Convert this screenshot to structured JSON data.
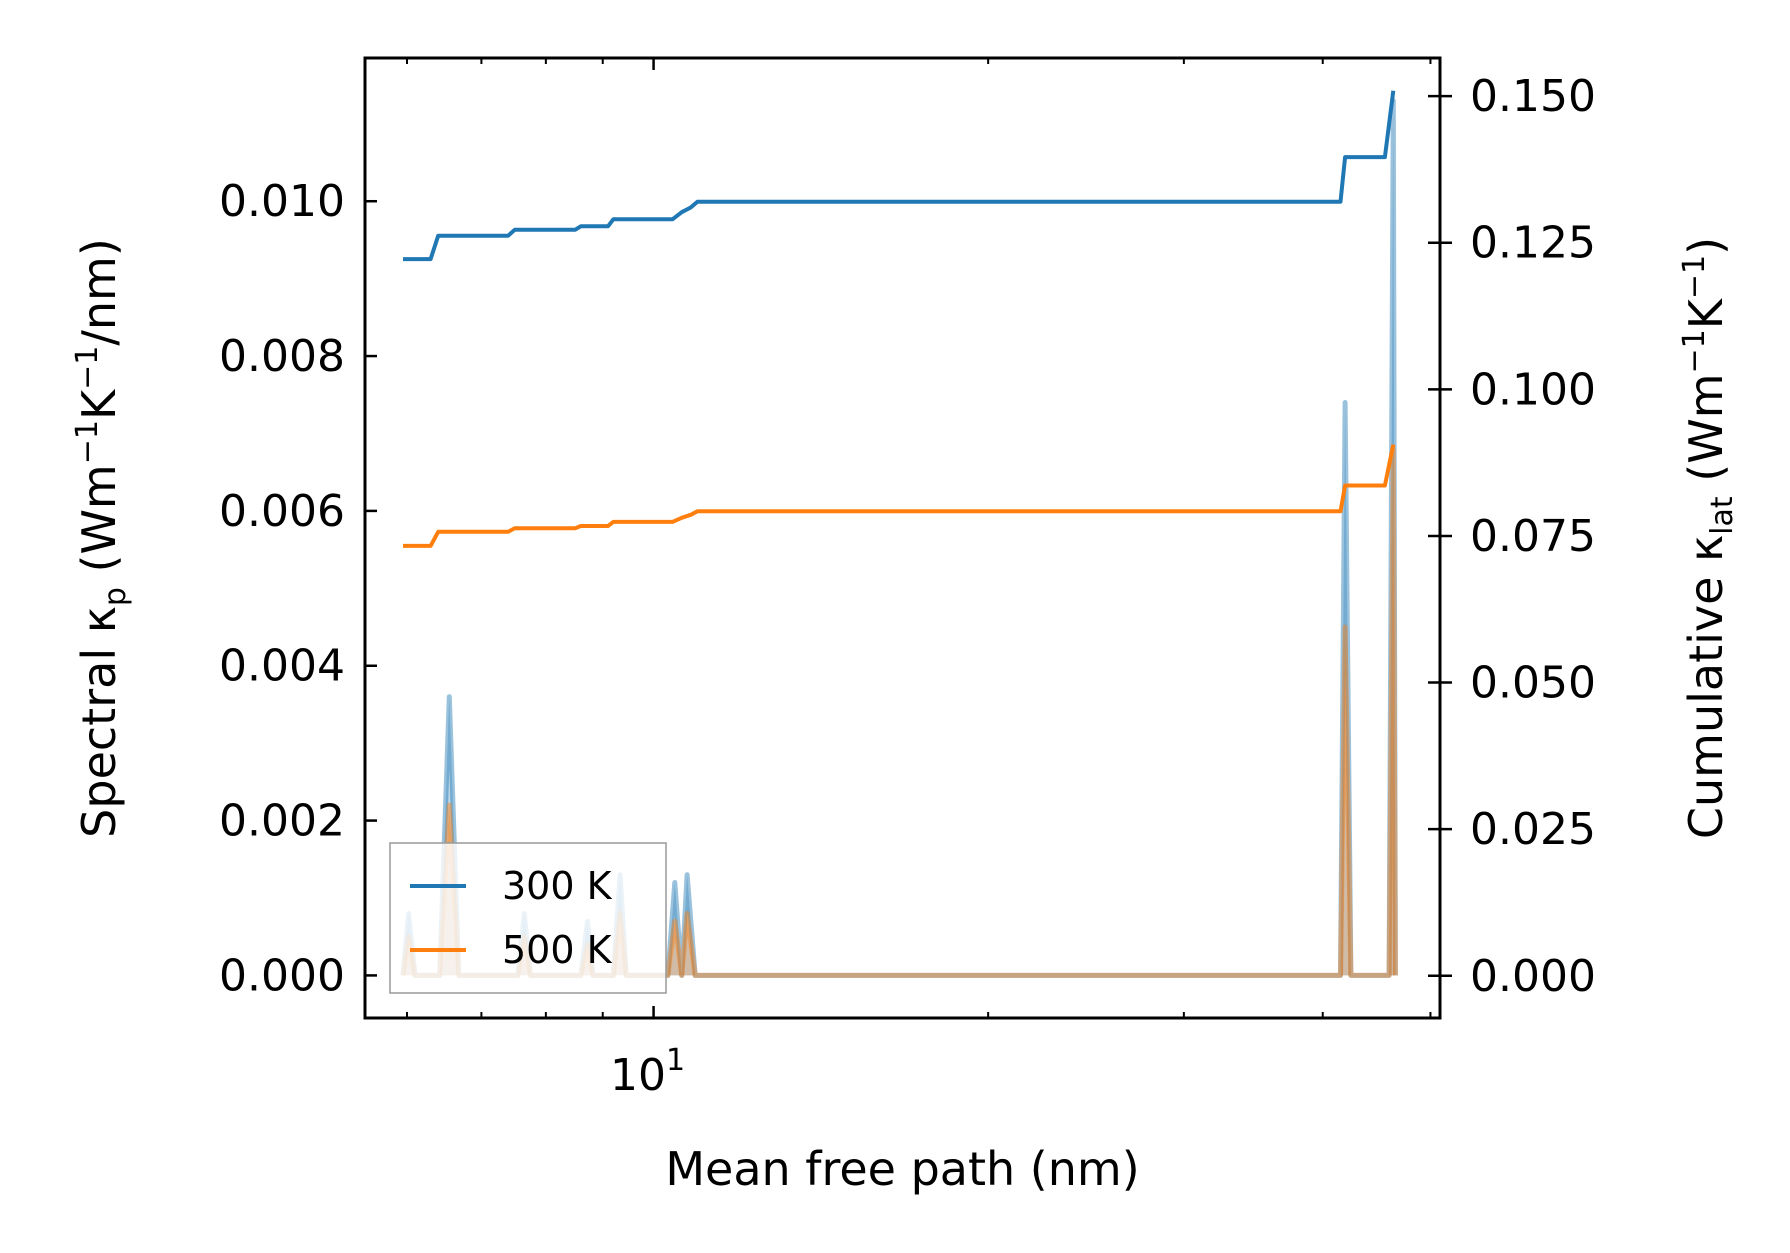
{
  "chart_data": {
    "type": "line",
    "xlabel": "Mean free path (nm)",
    "xscale": "log",
    "xlim": [
      5.5,
      51
    ],
    "x_tick_labels": [
      {
        "value": 10,
        "base": "10",
        "exp": "1"
      }
    ],
    "y_left": {
      "label_parts": {
        "a": "Spectral κ",
        "sub": "p",
        "b": " (Wm",
        "sup1": "−1",
        "c": "K",
        "sup2": "−1",
        "d": "/nm)"
      },
      "ylim": [
        -0.00055,
        0.01185
      ],
      "ticks": [
        0.0,
        0.002,
        0.004,
        0.006,
        0.008,
        0.01
      ],
      "tick_labels": [
        "0.000",
        "0.002",
        "0.004",
        "0.006",
        "0.008",
        "0.010"
      ]
    },
    "y_right": {
      "label_parts": {
        "a": "Cumulative κ",
        "sub": "lat",
        "b": " (Wm",
        "sup1": "−1",
        "c": "K",
        "sup2": "−1",
        "d": ")"
      },
      "ylim": [
        -0.0072,
        0.1565
      ],
      "ticks": [
        0.0,
        0.025,
        0.05,
        0.075,
        0.1,
        0.125,
        0.15
      ],
      "tick_labels": [
        "0.000",
        "0.025",
        "0.050",
        "0.075",
        "0.100",
        "0.125",
        "0.150"
      ]
    },
    "legend": {
      "placement": "lower-left",
      "entries": [
        {
          "label": "300 K",
          "color": "#1f77b4"
        },
        {
          "label": "500 K",
          "color": "#ff7f0e"
        }
      ]
    },
    "series": [
      {
        "name": "300 K",
        "color": "#1f77b4",
        "cumulative": [
          [
            5.95,
            0.1222
          ],
          [
            6.3,
            0.1222
          ],
          [
            6.4,
            0.1262
          ],
          [
            7.4,
            0.1262
          ],
          [
            7.5,
            0.1272
          ],
          [
            8.5,
            0.1272
          ],
          [
            8.6,
            0.1278
          ],
          [
            9.1,
            0.1278
          ],
          [
            9.2,
            0.129
          ],
          [
            10.4,
            0.129
          ],
          [
            10.6,
            0.1302
          ],
          [
            10.8,
            0.131
          ],
          [
            10.95,
            0.132
          ],
          [
            41.5,
            0.132
          ],
          [
            41.9,
            0.1396
          ],
          [
            45.5,
            0.1396
          ],
          [
            46.3,
            0.1509
          ]
        ],
        "spectral": [
          [
            5.95,
            0.0
          ],
          [
            6.02,
            0.0008
          ],
          [
            6.1,
            0.0
          ],
          [
            6.42,
            0.0
          ],
          [
            6.55,
            0.0036
          ],
          [
            6.68,
            0.0
          ],
          [
            7.55,
            0.0
          ],
          [
            7.65,
            0.0008
          ],
          [
            7.75,
            0.0
          ],
          [
            8.6,
            0.0
          ],
          [
            8.72,
            0.0007
          ],
          [
            8.82,
            0.0
          ],
          [
            9.2,
            0.0
          ],
          [
            9.33,
            0.0013
          ],
          [
            9.45,
            0.0
          ],
          [
            10.3,
            0.0
          ],
          [
            10.45,
            0.0012
          ],
          [
            10.6,
            0.0
          ],
          [
            10.72,
            0.0013
          ],
          [
            10.9,
            0.0
          ],
          [
            41.5,
            0.0
          ],
          [
            41.9,
            0.0074
          ],
          [
            42.4,
            0.0
          ],
          [
            45.9,
            0.0
          ],
          [
            46.3,
            0.0113
          ],
          [
            46.5,
            0.0
          ]
        ]
      },
      {
        "name": "500 K",
        "color": "#ff7f0e",
        "cumulative": [
          [
            5.95,
            0.0733
          ],
          [
            6.3,
            0.0733
          ],
          [
            6.4,
            0.0757
          ],
          [
            7.4,
            0.0757
          ],
          [
            7.5,
            0.0763
          ],
          [
            8.5,
            0.0763
          ],
          [
            8.6,
            0.0767
          ],
          [
            9.1,
            0.0767
          ],
          [
            9.2,
            0.0774
          ],
          [
            10.4,
            0.0774
          ],
          [
            10.6,
            0.0781
          ],
          [
            10.8,
            0.0786
          ],
          [
            10.95,
            0.0792
          ],
          [
            41.5,
            0.0792
          ],
          [
            41.9,
            0.0836
          ],
          [
            45.5,
            0.0836
          ],
          [
            46.3,
            0.0906
          ]
        ],
        "spectral": [
          [
            5.95,
            0.0
          ],
          [
            6.02,
            0.0005
          ],
          [
            6.1,
            0.0
          ],
          [
            6.42,
            0.0
          ],
          [
            6.55,
            0.0022
          ],
          [
            6.68,
            0.0
          ],
          [
            7.55,
            0.0
          ],
          [
            7.65,
            0.0005
          ],
          [
            7.75,
            0.0
          ],
          [
            8.6,
            0.0
          ],
          [
            8.72,
            0.0004
          ],
          [
            8.82,
            0.0
          ],
          [
            9.2,
            0.0
          ],
          [
            9.33,
            0.0008
          ],
          [
            9.45,
            0.0
          ],
          [
            10.3,
            0.0
          ],
          [
            10.45,
            0.0007
          ],
          [
            10.6,
            0.0
          ],
          [
            10.72,
            0.0008
          ],
          [
            10.9,
            0.0
          ],
          [
            41.5,
            0.0
          ],
          [
            41.9,
            0.0045
          ],
          [
            42.4,
            0.0
          ],
          [
            45.9,
            0.0
          ],
          [
            46.3,
            0.0068
          ],
          [
            46.5,
            0.0
          ]
        ]
      }
    ]
  }
}
